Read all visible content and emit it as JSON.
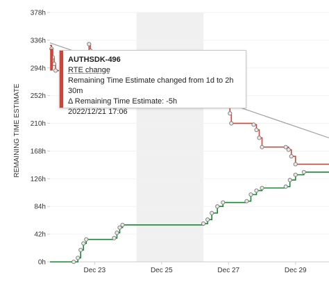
{
  "chart_data": {
    "type": "line",
    "ylabel": "REMAINING TIME ESTIMATE",
    "y_unit": "h",
    "ylim": [
      0,
      378
    ],
    "y_ticks": [
      0,
      42,
      84,
      126,
      168,
      210,
      252,
      294,
      336,
      378
    ],
    "y_tick_labels": [
      "0h",
      "42h",
      "84h",
      "126h",
      "168h",
      "210h",
      "252h",
      "294h",
      "336h",
      "378h"
    ],
    "xlim": [
      "2022-12-21 16:00",
      "2022-12-30 00:00"
    ],
    "x_ticks": [
      "2022-12-23",
      "2022-12-25",
      "2022-12-27",
      "2022-12-29"
    ],
    "x_tick_labels": [
      "Dec 23",
      "Dec 25",
      "Dec 27",
      "Dec 29"
    ],
    "non_working_range": [
      "2022-12-24 06:00",
      "2022-12-26 06:00"
    ],
    "series": [
      {
        "color": "#d04437",
        "style": "step",
        "points": [
          [
            "2022-12-21 16:00",
            328
          ],
          [
            "2022-12-21 17:06",
            323
          ],
          [
            "2022-12-21 18:00",
            310
          ],
          [
            "2022-12-21 19:00",
            300
          ],
          [
            "2022-12-21 20:00",
            290
          ],
          [
            "2022-12-22 20:00",
            330
          ],
          [
            "2022-12-22 21:00",
            320
          ],
          [
            "2022-12-26 23:00",
            260
          ],
          [
            "2022-12-27 00:00",
            240
          ],
          [
            "2022-12-27 01:00",
            225
          ],
          [
            "2022-12-27 02:00",
            210
          ],
          [
            "2022-12-27 18:00",
            208
          ],
          [
            "2022-12-27 20:00",
            200
          ],
          [
            "2022-12-27 22:00",
            188
          ],
          [
            "2022-12-28 00:00",
            174
          ],
          [
            "2022-12-28 17:00",
            174
          ],
          [
            "2022-12-28 19:00",
            170
          ],
          [
            "2022-12-28 21:00",
            160
          ],
          [
            "2022-12-29 00:00",
            148
          ],
          [
            "2022-12-30 00:00",
            148
          ]
        ]
      },
      {
        "color": "#14892c",
        "style": "step",
        "points": [
          [
            "2022-12-21 16:00",
            0
          ],
          [
            "2022-12-22 09:00",
            0
          ],
          [
            "2022-12-22 12:00",
            6
          ],
          [
            "2022-12-22 14:00",
            18
          ],
          [
            "2022-12-22 16:00",
            28
          ],
          [
            "2022-12-22 18:00",
            34
          ],
          [
            "2022-12-23 14:00",
            36
          ],
          [
            "2022-12-23 16:00",
            44
          ],
          [
            "2022-12-23 18:00",
            52
          ],
          [
            "2022-12-23 20:00",
            56
          ],
          [
            "2022-12-26 06:00",
            58
          ],
          [
            "2022-12-26 09:00",
            64
          ],
          [
            "2022-12-26 12:00",
            74
          ],
          [
            "2022-12-26 16:00",
            84
          ],
          [
            "2022-12-26 20:00",
            90
          ],
          [
            "2022-12-27 13:00",
            92
          ],
          [
            "2022-12-27 16:00",
            102
          ],
          [
            "2022-12-27 20:00",
            108
          ],
          [
            "2022-12-28 00:00",
            112
          ],
          [
            "2022-12-28 17:00",
            114
          ],
          [
            "2022-12-28 20:00",
            124
          ],
          [
            "2022-12-29 00:00",
            132
          ],
          [
            "2022-12-29 06:00",
            136
          ],
          [
            "2022-12-30 00:00",
            136
          ]
        ]
      },
      {
        "color": "#a0a0a0",
        "style": "linear",
        "points": [
          [
            "2022-12-21 16:00",
            332
          ],
          [
            "2022-12-30 00:00",
            188
          ]
        ]
      }
    ]
  },
  "tooltip": {
    "issue_key": "AUTHSDK-496",
    "event_type": "RTE change",
    "detail": "Remaining Time Estimate changed from 1d to 2h 30m",
    "delta": "Δ Remaining Time Estimate: -5h",
    "timestamp": "2022/12/21 17:06",
    "accent": "#d04437"
  }
}
